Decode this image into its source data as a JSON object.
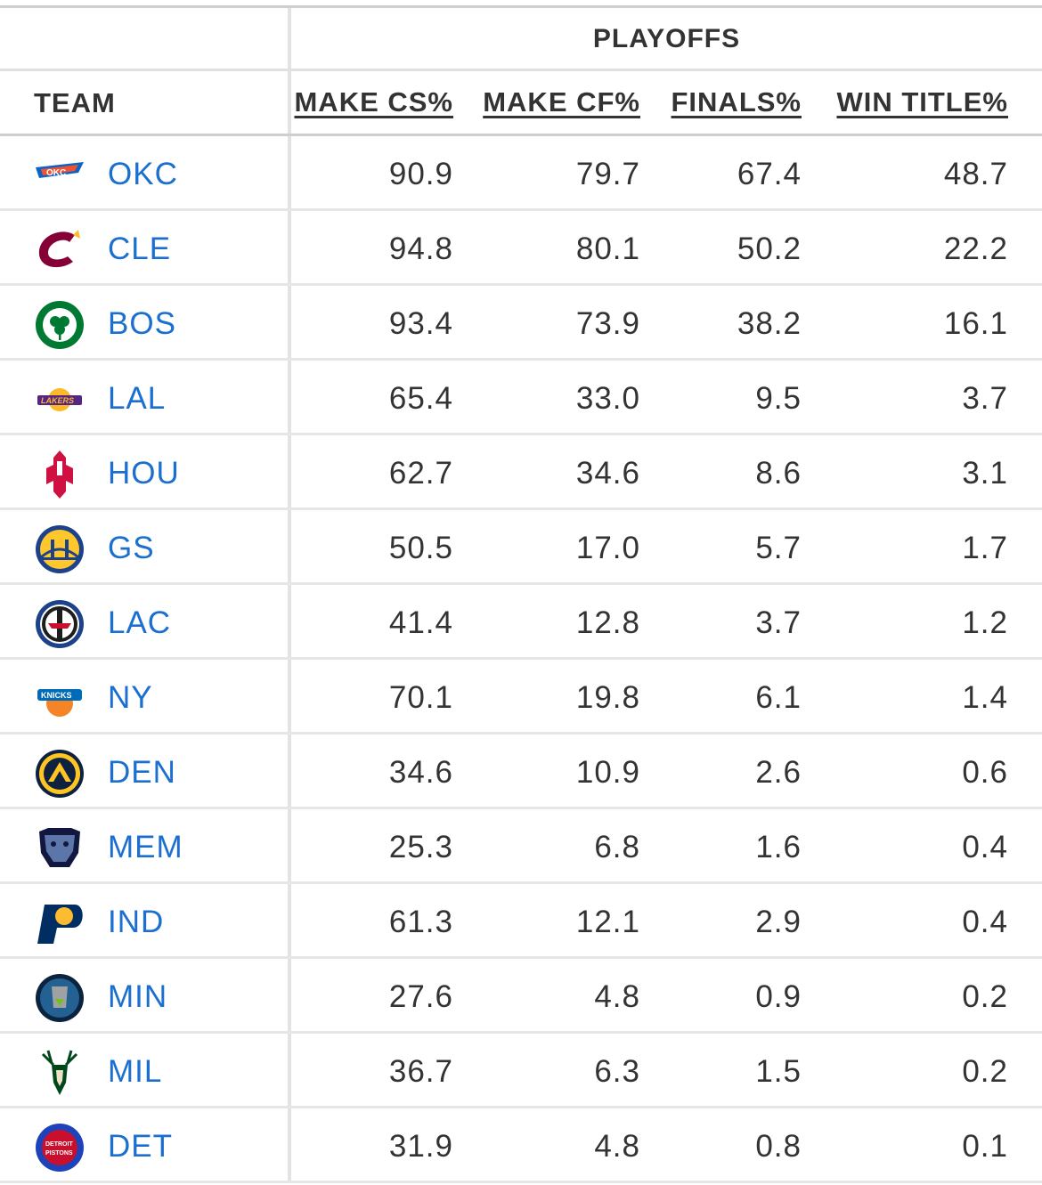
{
  "table": {
    "group_header": "PLAYOFFS",
    "team_header": "TEAM",
    "columns": [
      "MAKE CS%",
      "MAKE CF%",
      "FINALS%",
      "WIN TITLE%"
    ],
    "rows": [
      {
        "team": "OKC",
        "logo": "thunder-logo",
        "values": [
          "90.9",
          "79.7",
          "67.4",
          "48.7"
        ]
      },
      {
        "team": "CLE",
        "logo": "cavaliers-logo",
        "values": [
          "94.8",
          "80.1",
          "50.2",
          "22.2"
        ]
      },
      {
        "team": "BOS",
        "logo": "celtics-logo",
        "values": [
          "93.4",
          "73.9",
          "38.2",
          "16.1"
        ]
      },
      {
        "team": "LAL",
        "logo": "lakers-logo",
        "values": [
          "65.4",
          "33.0",
          "9.5",
          "3.7"
        ]
      },
      {
        "team": "HOU",
        "logo": "rockets-logo",
        "values": [
          "62.7",
          "34.6",
          "8.6",
          "3.1"
        ]
      },
      {
        "team": "GS",
        "logo": "warriors-logo",
        "values": [
          "50.5",
          "17.0",
          "5.7",
          "1.7"
        ]
      },
      {
        "team": "LAC",
        "logo": "clippers-logo",
        "values": [
          "41.4",
          "12.8",
          "3.7",
          "1.2"
        ]
      },
      {
        "team": "NY",
        "logo": "knicks-logo",
        "values": [
          "70.1",
          "19.8",
          "6.1",
          "1.4"
        ]
      },
      {
        "team": "DEN",
        "logo": "nuggets-logo",
        "values": [
          "34.6",
          "10.9",
          "2.6",
          "0.6"
        ]
      },
      {
        "team": "MEM",
        "logo": "grizzlies-logo",
        "values": [
          "25.3",
          "6.8",
          "1.6",
          "0.4"
        ]
      },
      {
        "team": "IND",
        "logo": "pacers-logo",
        "values": [
          "61.3",
          "12.1",
          "2.9",
          "0.4"
        ]
      },
      {
        "team": "MIN",
        "logo": "timberwolves-logo",
        "values": [
          "27.6",
          "4.8",
          "0.9",
          "0.2"
        ]
      },
      {
        "team": "MIL",
        "logo": "bucks-logo",
        "values": [
          "36.7",
          "6.3",
          "1.5",
          "0.2"
        ]
      },
      {
        "team": "DET",
        "logo": "pistons-logo",
        "values": [
          "31.9",
          "4.8",
          "0.8",
          "0.1"
        ]
      }
    ]
  },
  "colors": {
    "link": "#1a6fd0",
    "text": "#333333",
    "rule": "#e6e6e6"
  }
}
